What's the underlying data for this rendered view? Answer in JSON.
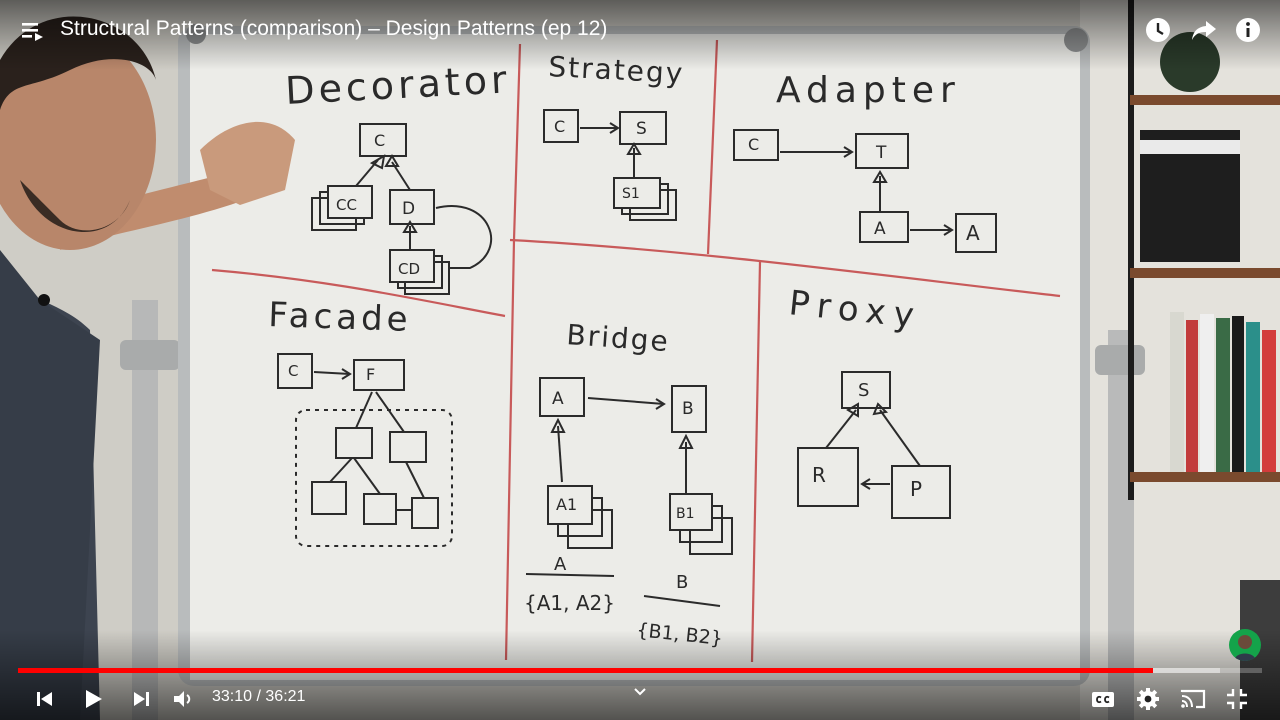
{
  "video": {
    "title": "Structural Patterns (comparison) – Design Patterns (ep 12)"
  },
  "player": {
    "time_current": "33:10",
    "time_separator": " / ",
    "time_total": "36:21",
    "played_fraction": 0.912,
    "buffered_fraction": 0.966
  },
  "colors": {
    "progress_played": "#ff0000",
    "whiteboard": "#ecece8",
    "marker": "#2a2a2a",
    "divider": "#c85a5a"
  },
  "icons": [
    "playlist-icon",
    "watch-later-icon",
    "share-icon",
    "info-icon",
    "previous-icon",
    "play-icon",
    "next-icon",
    "volume-icon",
    "chevron-up-icon",
    "captions-icon",
    "settings-icon",
    "cast-icon",
    "exit-fullscreen-icon"
  ],
  "whiteboard": {
    "sections": [
      {
        "heading": "Decorator",
        "boxes": [
          "C",
          "CC",
          "D",
          "CD"
        ]
      },
      {
        "heading": "Strategy",
        "boxes": [
          "C",
          "S",
          "S1"
        ]
      },
      {
        "heading": "Adapter",
        "boxes": [
          "C",
          "T",
          "A",
          "A"
        ]
      },
      {
        "heading": "Facade",
        "boxes": [
          "C",
          "F"
        ]
      },
      {
        "heading": "Bridge",
        "boxes": [
          "A",
          "B",
          "A1",
          "B1"
        ],
        "notes": [
          "A",
          "{A1, A2}",
          "B",
          "{B1, B2}"
        ]
      },
      {
        "heading": "Proxy",
        "boxes": [
          "S",
          "R",
          "P"
        ]
      }
    ]
  }
}
